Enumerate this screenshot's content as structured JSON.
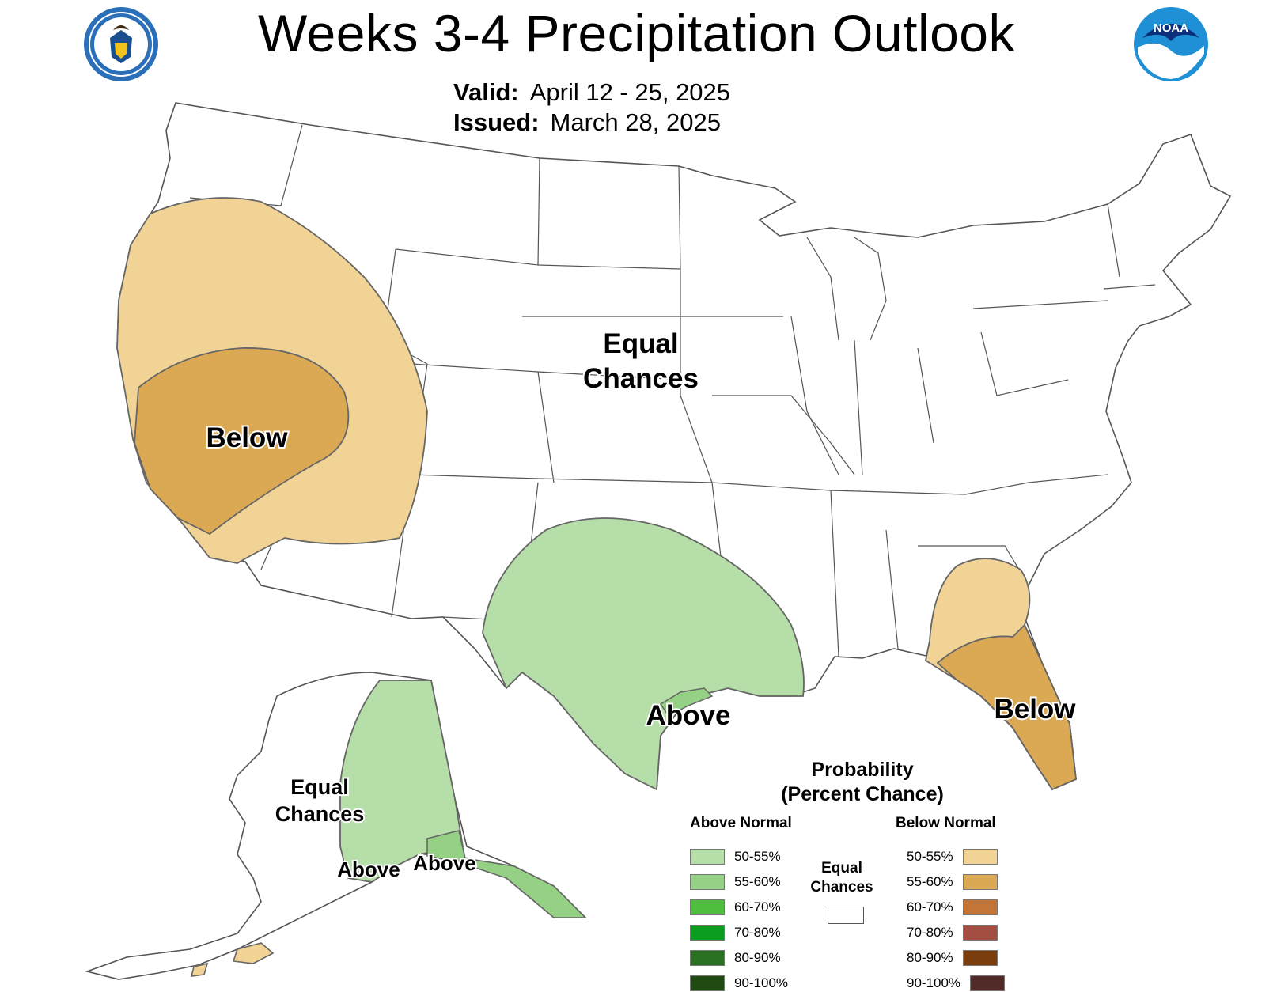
{
  "header": {
    "title": "Weeks 3-4 Precipitation Outlook",
    "valid_label": "Valid:",
    "valid_value": "April 12 - 25, 2025",
    "issued_label": "Issued:",
    "issued_value": "March 28, 2025"
  },
  "logos": {
    "commerce_seal": "department-of-commerce-seal",
    "noaa_logo_text": "NOAA"
  },
  "map_labels": {
    "conus_equal_line1": "Equal",
    "conus_equal_line2": "Chances",
    "west_below": "Below",
    "texas_above": "Above",
    "florida_below": "Below",
    "alaska_equal_line1": "Equal",
    "alaska_equal_line2": "Chances",
    "alaska_above_west": "Above",
    "alaska_above_east": "Above"
  },
  "regions": [
    {
      "name": "west-below-50-55",
      "category": "Below Normal",
      "probability": "50-55%",
      "color": "#f2d396"
    },
    {
      "name": "west-below-55-60",
      "category": "Below Normal",
      "probability": "55-60%",
      "color": "#dba954"
    },
    {
      "name": "south-central-above-50-55",
      "category": "Above Normal",
      "probability": "50-55%",
      "color": "#b5dea8"
    },
    {
      "name": "gulf-coast-above-55-60",
      "category": "Above Normal",
      "probability": "55-60%",
      "color": "#94d184"
    },
    {
      "name": "southeast-below-50-55",
      "category": "Below Normal",
      "probability": "50-55%",
      "color": "#f2d396"
    },
    {
      "name": "florida-below-55-60",
      "category": "Below Normal",
      "probability": "55-60%",
      "color": "#dba954"
    },
    {
      "name": "alaska-interior-above-50-55",
      "category": "Above Normal",
      "probability": "50-55%",
      "color": "#b5dea8"
    },
    {
      "name": "alaska-south-above-55-60",
      "category": "Above Normal",
      "probability": "55-60%",
      "color": "#94d184"
    },
    {
      "name": "alaska-aleutian-below-50-55",
      "category": "Below Normal",
      "probability": "50-55%",
      "color": "#f2d396"
    }
  ],
  "legend": {
    "title_line1": "Probability",
    "title_line2": "(Percent Chance)",
    "above_heading": "Above Normal",
    "below_heading": "Below Normal",
    "equal_line1": "Equal",
    "equal_line2": "Chances",
    "above": [
      {
        "label": "50-55%",
        "color": "#b5dea8"
      },
      {
        "label": "55-60%",
        "color": "#94d184"
      },
      {
        "label": "60-70%",
        "color": "#4fbe3f"
      },
      {
        "label": "70-80%",
        "color": "#0a9d1f"
      },
      {
        "label": "80-90%",
        "color": "#297020"
      },
      {
        "label": "90-100%",
        "color": "#1f4a12"
      }
    ],
    "below": [
      {
        "label": "50-55%",
        "color": "#f2d396"
      },
      {
        "label": "55-60%",
        "color": "#dba954"
      },
      {
        "label": "60-70%",
        "color": "#c27537"
      },
      {
        "label": "70-80%",
        "color": "#a44d43"
      },
      {
        "label": "80-90%",
        "color": "#7b3d0c"
      },
      {
        "label": "90-100%",
        "color": "#502b28"
      }
    ]
  }
}
